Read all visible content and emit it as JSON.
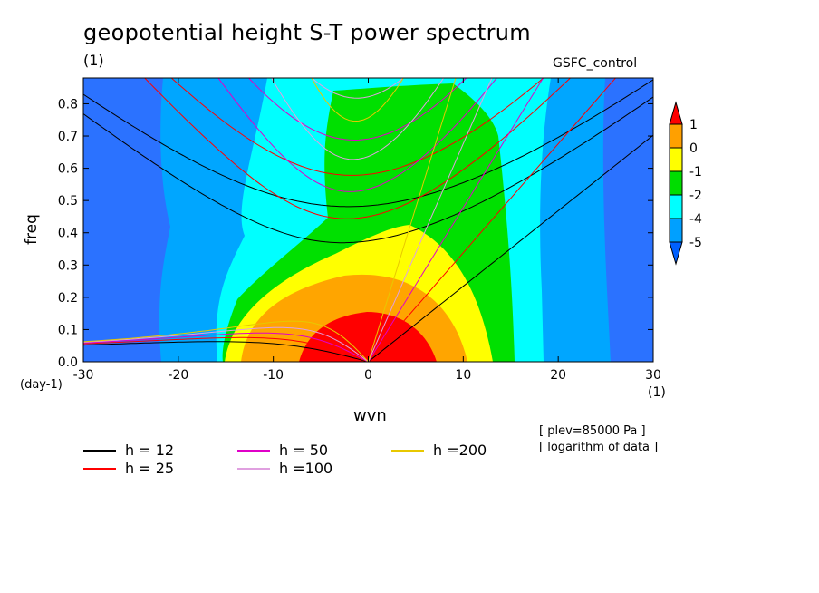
{
  "chart_data": {
    "type": "heatmap",
    "title": "geopotential height S-T power spectrum",
    "subtitle_left": "(1)",
    "subtitle_right": "GSFC_control",
    "xlabel": "wvn",
    "ylabel": "freq",
    "x_unit_left": "(day-1)",
    "x_unit_right": "(1)",
    "xlim": [
      -30,
      30
    ],
    "ylim": [
      0.0,
      0.88
    ],
    "x_ticks": [
      -30,
      -20,
      -10,
      0,
      10,
      20,
      30
    ],
    "x_tick_labels": [
      "-30",
      "-20",
      "-10",
      "0",
      "10",
      "20",
      "30"
    ],
    "y_ticks": [
      0.0,
      0.1,
      0.2,
      0.3,
      0.4,
      0.5,
      0.6,
      0.7,
      0.8
    ],
    "y_tick_labels": [
      "0.0",
      "0.1",
      "0.2",
      "0.3",
      "0.4",
      "0.5",
      "0.6",
      "0.7",
      "0.8"
    ],
    "colorbar": {
      "levels": [
        "1",
        "0",
        "-1",
        "-2",
        "-4",
        "-5"
      ],
      "colors": [
        "#ff0000",
        "#ffa000",
        "#ffff00",
        "#00dd00",
        "#00ffff",
        "#00a0ff",
        "#0060ff"
      ]
    },
    "field_colors": {
      "dark_blue": "#2b72ff",
      "light_blue": "#00a6ff",
      "cyan": "#00ffff",
      "green": "#00e000",
      "yellow": "#ffff00",
      "orange": "#ffa500",
      "red": "#ff0000"
    },
    "dispersion_curves": [
      {
        "label": "h = 12",
        "color": "#000000"
      },
      {
        "label": "h = 25",
        "color": "#ff0000"
      },
      {
        "label": "h = 50",
        "color": "#e000c8"
      },
      {
        "label": "h =100",
        "color": "#e0a0e0"
      },
      {
        "label": "h =200",
        "color": "#e8c800"
      }
    ],
    "notes": [
      "[ plev=85000 Pa ]",
      "[ logarithm of data ]"
    ]
  }
}
